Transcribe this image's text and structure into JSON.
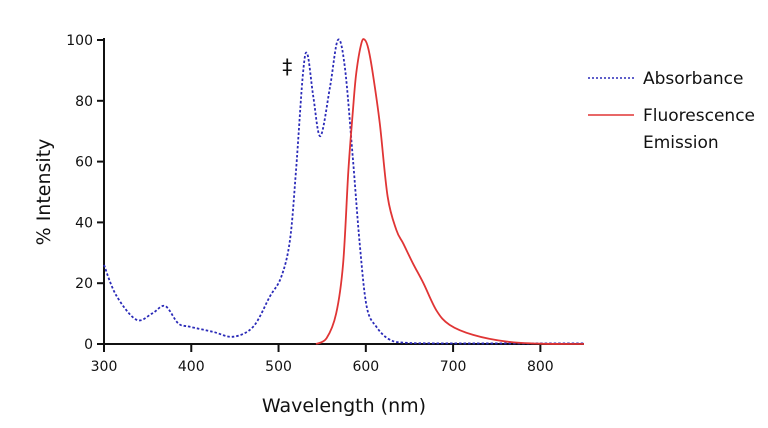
{
  "chart_data": {
    "type": "line",
    "title": "",
    "xlabel": "Wavelength (nm)",
    "ylabel": "% Intensity",
    "xlim": [
      300,
      850
    ],
    "ylim": [
      0,
      100
    ],
    "xticks": [
      300,
      400,
      500,
      600,
      700,
      800
    ],
    "yticks": [
      0,
      20,
      40,
      60,
      80,
      100
    ],
    "grid": false,
    "legend_placement": "right",
    "annotation": "‡",
    "annotation_at": {
      "x": 510,
      "y": 89
    },
    "series": [
      {
        "name": "Absorbance",
        "style": "dotted",
        "color": "#2a2ab8",
        "points": [
          [
            300,
            26
          ],
          [
            314,
            16
          ],
          [
            337,
            8
          ],
          [
            355,
            10
          ],
          [
            370,
            12.5
          ],
          [
            385,
            6.8
          ],
          [
            398,
            5.7
          ],
          [
            425,
            4
          ],
          [
            448,
            2.4
          ],
          [
            471,
            5.7
          ],
          [
            490,
            15.6
          ],
          [
            503,
            22
          ],
          [
            513,
            34
          ],
          [
            520,
            57
          ],
          [
            528,
            89
          ],
          [
            533,
            95.4
          ],
          [
            540,
            81
          ],
          [
            548,
            68.4
          ],
          [
            559,
            84.6
          ],
          [
            568,
            100
          ],
          [
            576,
            91
          ],
          [
            585,
            61.6
          ],
          [
            593,
            33
          ],
          [
            601,
            12.3
          ],
          [
            612,
            5.7
          ],
          [
            627,
            1.5
          ],
          [
            646,
            0.4
          ],
          [
            700,
            0.2
          ],
          [
            850,
            0.2
          ]
        ]
      },
      {
        "name": "Fluorescence Emission",
        "legend_lines": [
          "Fluorescence",
          "Emission"
        ],
        "style": "solid",
        "color": "#e03535",
        "points": [
          [
            543,
            0
          ],
          [
            555,
            1.9
          ],
          [
            566,
            10
          ],
          [
            574,
            26.5
          ],
          [
            580,
            57
          ],
          [
            585,
            76
          ],
          [
            589,
            89
          ],
          [
            595,
            99
          ],
          [
            599,
            100
          ],
          [
            603,
            97
          ],
          [
            608,
            89
          ],
          [
            616,
            72.6
          ],
          [
            625,
            48.5
          ],
          [
            635,
            37.5
          ],
          [
            643,
            33
          ],
          [
            654,
            26.5
          ],
          [
            666,
            20
          ],
          [
            681,
            11
          ],
          [
            696,
            6.3
          ],
          [
            723,
            3
          ],
          [
            761,
            0.8
          ],
          [
            800,
            0.1
          ],
          [
            850,
            0
          ]
        ]
      }
    ]
  }
}
